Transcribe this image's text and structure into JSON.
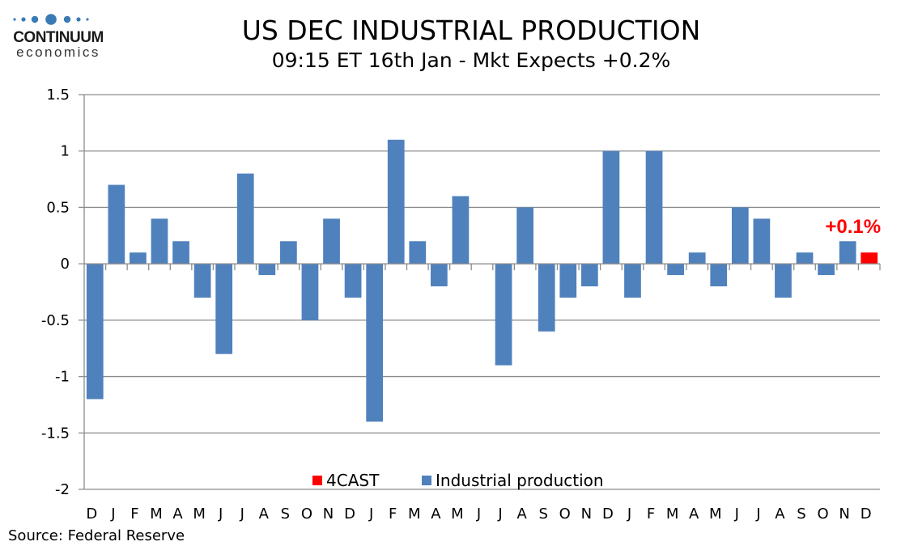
{
  "logo": {
    "name_top": "CONTINUUM",
    "name_bottom": "economics",
    "dots_color": "#3a7ab5"
  },
  "header": {
    "title": "US DEC INDUSTRIAL PRODUCTION",
    "subtitle": "09:15 ET 16th Jan - Mkt Expects +0.2%"
  },
  "footer": {
    "source": "Source: Federal Reserve"
  },
  "chart_data": {
    "type": "bar",
    "title": "US DEC INDUSTRIAL PRODUCTION",
    "subtitle": "09:15 ET 16th Jan - Mkt Expects +0.2%",
    "xlabel": "",
    "ylabel": "",
    "ylim": [
      -2,
      1.5
    ],
    "yticks": [
      1.5,
      1,
      0.5,
      0,
      -0.5,
      -1,
      -1.5,
      -2
    ],
    "ytick_labels": [
      "1.5",
      "1",
      "0.5",
      "0",
      "-0.5",
      "-1",
      "-1.5",
      "-2"
    ],
    "grid": true,
    "categories": [
      "D",
      "J",
      "F",
      "M",
      "A",
      "M",
      "J",
      "J",
      "A",
      "S",
      "O",
      "N",
      "D",
      "J",
      "F",
      "M",
      "A",
      "M",
      "J",
      "J",
      "A",
      "S",
      "O",
      "N",
      "D",
      "J",
      "F",
      "M",
      "A",
      "M",
      "J",
      "J",
      "A",
      "S",
      "O",
      "N",
      "D"
    ],
    "series": [
      {
        "name": "4CAST",
        "color": "#ff0000",
        "values": [
          null,
          null,
          null,
          null,
          null,
          null,
          null,
          null,
          null,
          null,
          null,
          null,
          null,
          null,
          null,
          null,
          null,
          null,
          null,
          null,
          null,
          null,
          null,
          null,
          null,
          null,
          null,
          null,
          null,
          null,
          null,
          null,
          null,
          null,
          null,
          null,
          0.1
        ]
      },
      {
        "name": "Industrial production",
        "color": "#4f81bd",
        "values": [
          -1.2,
          0.7,
          0.1,
          0.4,
          0.2,
          -0.3,
          -0.8,
          0.8,
          -0.1,
          0.2,
          -0.5,
          0.4,
          -0.3,
          -1.4,
          1.1,
          0.2,
          -0.2,
          0.6,
          0.0,
          -0.9,
          0.5,
          -0.6,
          -0.3,
          -0.2,
          1.0,
          -0.3,
          1.0,
          -0.1,
          0.1,
          -0.2,
          0.5,
          0.4,
          -0.3,
          0.1,
          -0.1,
          0.2,
          null
        ]
      }
    ],
    "legend": {
      "position": "bottom-center-inside",
      "entries": [
        "4CAST",
        "Industrial production"
      ]
    },
    "annotations": [
      {
        "text": "+0.1%",
        "category_index": 36,
        "color": "#ff0000"
      }
    ]
  }
}
